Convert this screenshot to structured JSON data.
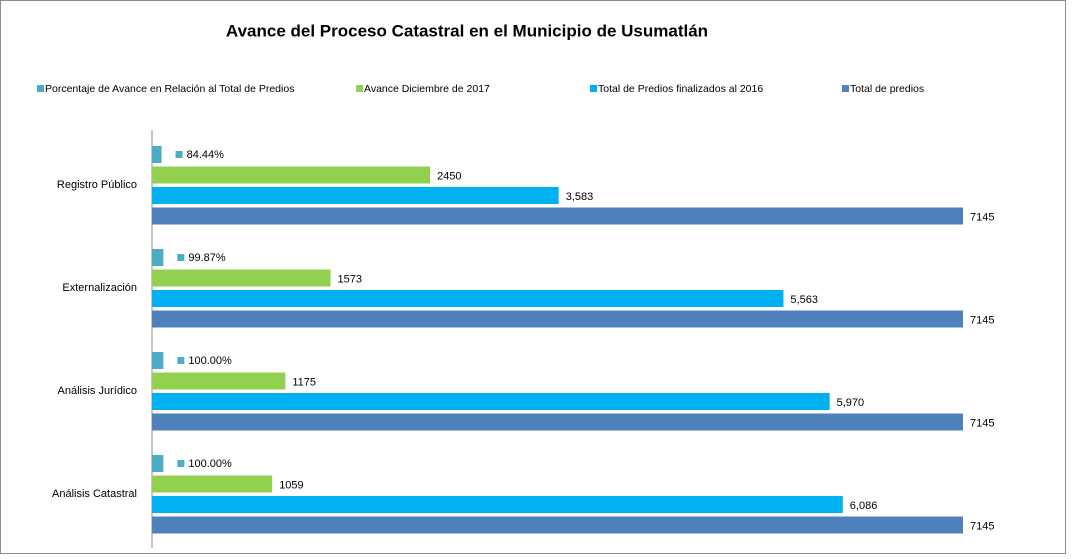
{
  "chart_data": {
    "type": "hbar",
    "title": "Avance del Proceso Catastral en el Municipio de  Usumatlán",
    "categories": [
      "Registro Público",
      "Externalización",
      "Análisis Jurídico",
      "Análisis Catastral"
    ],
    "series": [
      {
        "name": "Porcentaje de Avance en Relación al Total de Predios",
        "color": "#4bacc6",
        "values": [
          84.44,
          99.87,
          100,
          100
        ],
        "value_labels": [
          "84.44%",
          "99.87%",
          "100.00%",
          "100.00%"
        ]
      },
      {
        "name": "Avance Diciembre de 2017",
        "color": "#92d050",
        "values": [
          2450,
          1573,
          1175,
          1059
        ]
      },
      {
        "name": "Total de Predios finalizados al 2016",
        "color": "#00b0f0",
        "values": [
          3583,
          5563,
          5970,
          6086
        ],
        "value_labels": [
          "3,583",
          "5,563",
          "5,970",
          "6,086"
        ]
      },
      {
        "name": "Total de predios",
        "color": "#4f81bd",
        "values": [
          7145,
          7145,
          7145,
          7145
        ]
      }
    ],
    "xlim": [
      0,
      7145
    ],
    "legend": "top"
  }
}
